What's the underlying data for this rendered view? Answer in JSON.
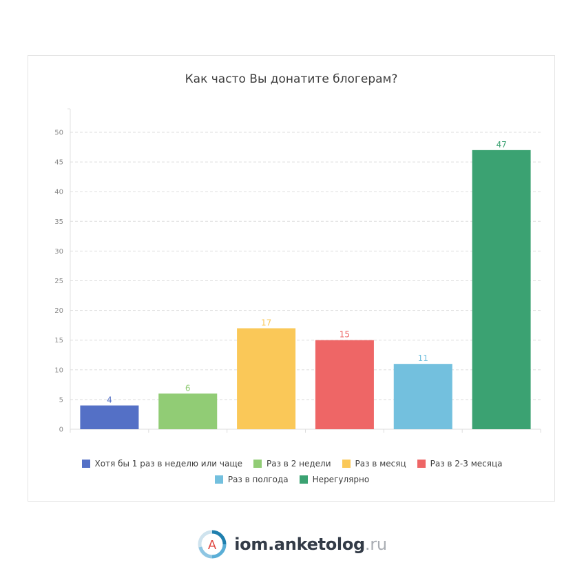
{
  "chart_data": {
    "type": "bar",
    "title": "Как часто Вы донатите блогерам?",
    "categories": [
      "Хотя бы 1 раз в неделю или чаще",
      "Раз в 2 недели",
      "Раз в месяц",
      "Раз в 2-3 месяца",
      "Раз в полгода",
      "Нерегулярно"
    ],
    "values": [
      4,
      6,
      17,
      15,
      11,
      47
    ],
    "colors": [
      "#5470c6",
      "#91cc75",
      "#fac858",
      "#ee6666",
      "#73c0de",
      "#3ba272"
    ],
    "ylim": [
      0,
      50
    ],
    "yticks": [
      0,
      5,
      10,
      15,
      20,
      25,
      30,
      35,
      40,
      45,
      50
    ],
    "grid": true,
    "legend_position": "bottom"
  },
  "footer": {
    "logo_letter": "A",
    "brand_main": "iom.anketolog",
    "brand_suffix": ".ru"
  }
}
